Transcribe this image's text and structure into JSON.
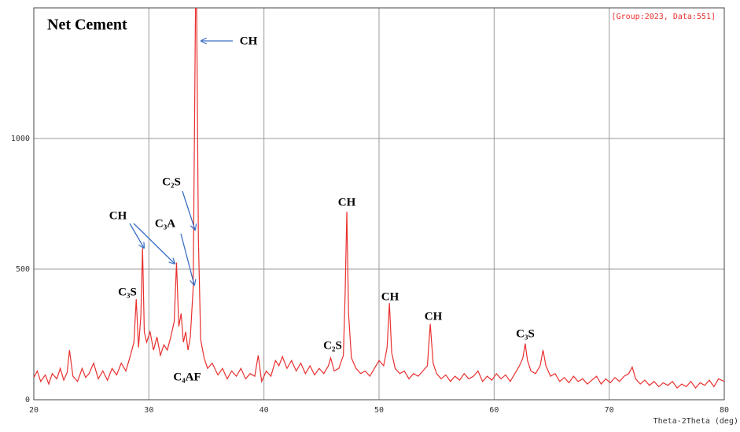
{
  "chart_data": {
    "type": "line",
    "title": "Net Cement",
    "subtitle": "[Group:2023, Data:551]",
    "x_label": "Theta-2Theta (deg)",
    "xlim": [
      20,
      80
    ],
    "xticks": [
      20,
      30,
      40,
      50,
      60,
      70,
      80
    ],
    "ylim": [
      0,
      1500
    ],
    "yticks": [
      0,
      500,
      1000
    ],
    "grid": true,
    "annotations": [
      "CH",
      "C₂S",
      "CH",
      "C₃A",
      "C₃S",
      "C₄AF",
      "CH",
      "C₂S",
      "CH",
      "CH",
      "C₃S"
    ],
    "series": [
      {
        "color": "#e8302f",
        "x": [
          20,
          20.3,
          20.6,
          21,
          21.3,
          21.6,
          22,
          22.3,
          22.6,
          22.9,
          23.1,
          23.4,
          23.8,
          24.2,
          24.5,
          24.8,
          25.2,
          25.6,
          26,
          26.4,
          26.8,
          27.2,
          27.6,
          28,
          28.4,
          28.7,
          28.9,
          29.1,
          29.3,
          29.45,
          29.6,
          29.8,
          30.1,
          30.4,
          30.7,
          31,
          31.3,
          31.6,
          31.9,
          32.2,
          32.4,
          32.6,
          32.8,
          33,
          33.2,
          33.4,
          33.6,
          33.85,
          34.05,
          34.15,
          34.3,
          34.5,
          34.8,
          35.1,
          35.5,
          36,
          36.4,
          36.8,
          37.2,
          37.6,
          38,
          38.4,
          38.8,
          39.2,
          39.5,
          39.8,
          40.2,
          40.6,
          41,
          41.3,
          41.6,
          42,
          42.4,
          42.8,
          43.2,
          43.6,
          44,
          44.4,
          44.8,
          45.2,
          45.6,
          45.8,
          46.1,
          46.5,
          46.9,
          47.05,
          47.2,
          47.35,
          47.6,
          48,
          48.4,
          48.8,
          49.2,
          49.6,
          50,
          50.4,
          50.7,
          50.9,
          51.1,
          51.4,
          51.8,
          52.2,
          52.6,
          53,
          53.4,
          53.8,
          54.2,
          54.45,
          54.7,
          55,
          55.4,
          55.8,
          56.2,
          56.6,
          57,
          57.4,
          57.8,
          58.2,
          58.6,
          59,
          59.4,
          59.8,
          60.2,
          60.6,
          61,
          61.4,
          61.8,
          62.2,
          62.5,
          62.7,
          62.9,
          63.2,
          63.6,
          64,
          64.25,
          64.5,
          64.9,
          65.3,
          65.7,
          66.1,
          66.5,
          66.9,
          67.3,
          67.7,
          68.1,
          68.5,
          68.9,
          69.3,
          69.7,
          70.1,
          70.5,
          70.9,
          71.3,
          71.7,
          72,
          72.3,
          72.7,
          73.1,
          73.5,
          73.9,
          74.3,
          74.7,
          75.1,
          75.5,
          75.9,
          76.3,
          76.7,
          77.1,
          77.5,
          77.9,
          78.3,
          78.7,
          79.1,
          79.5,
          80
        ],
        "values": [
          85,
          110,
          70,
          95,
          60,
          100,
          80,
          120,
          75,
          105,
          190,
          90,
          70,
          120,
          85,
          100,
          140,
          80,
          110,
          75,
          120,
          95,
          140,
          110,
          170,
          220,
          385,
          200,
          320,
          580,
          260,
          220,
          260,
          190,
          240,
          170,
          210,
          190,
          240,
          300,
          525,
          280,
          330,
          220,
          260,
          190,
          240,
          430,
          1500,
          1500,
          620,
          230,
          160,
          120,
          140,
          95,
          120,
          80,
          110,
          90,
          120,
          80,
          100,
          90,
          170,
          70,
          110,
          90,
          150,
          130,
          165,
          120,
          150,
          110,
          140,
          100,
          130,
          95,
          120,
          100,
          130,
          160,
          110,
          120,
          170,
          400,
          720,
          330,
          160,
          120,
          100,
          110,
          90,
          120,
          150,
          130,
          200,
          370,
          180,
          120,
          100,
          110,
          80,
          100,
          90,
          110,
          130,
          290,
          140,
          100,
          80,
          95,
          70,
          90,
          75,
          100,
          80,
          90,
          110,
          70,
          90,
          75,
          100,
          80,
          95,
          70,
          100,
          130,
          160,
          215,
          150,
          110,
          100,
          130,
          190,
          130,
          90,
          100,
          70,
          85,
          65,
          90,
          70,
          80,
          60,
          75,
          90,
          60,
          80,
          65,
          85,
          70,
          90,
          100,
          125,
          80,
          60,
          75,
          55,
          70,
          50,
          65,
          55,
          70,
          45,
          60,
          50,
          70,
          45,
          65,
          55,
          75,
          50,
          80,
          70
        ]
      }
    ]
  }
}
